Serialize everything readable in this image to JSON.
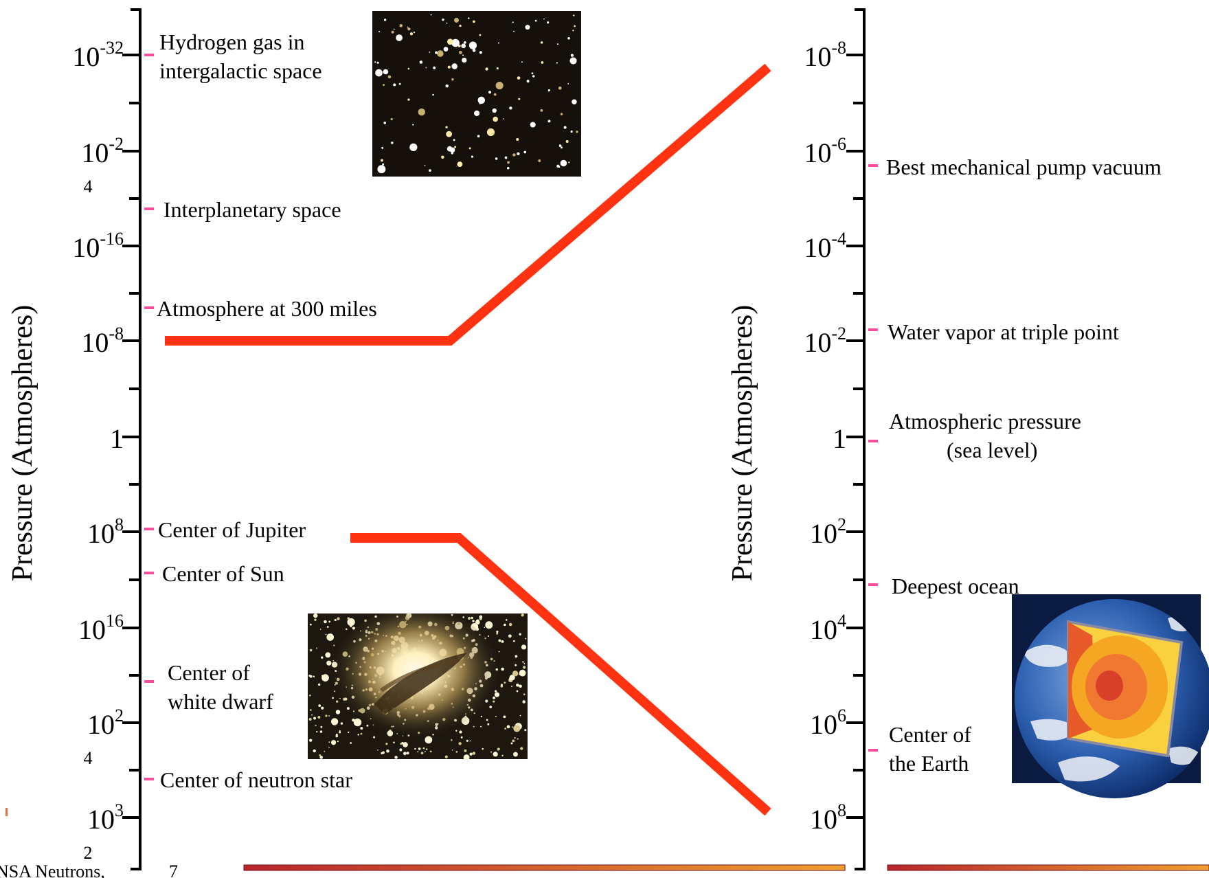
{
  "left_scale": {
    "axis_label": "Pressure (Atmospheres)",
    "ticks": [
      {
        "base": "10",
        "sup": "-32",
        "sub": ""
      },
      {
        "base": "10",
        "sup": "-2",
        "sub": "4"
      },
      {
        "base": "10",
        "sup": "-16",
        "sub": ""
      },
      {
        "base": "10",
        "sup": "-8",
        "sub": ""
      },
      {
        "base": "1",
        "sup": "",
        "sub": ""
      },
      {
        "base": "10",
        "sup": "8",
        "sub": ""
      },
      {
        "base": "10",
        "sup": "16",
        "sub": ""
      },
      {
        "base": "10",
        "sup": "2",
        "sub": "4"
      },
      {
        "base": "10",
        "sup": "3",
        "sub": "2"
      }
    ],
    "annotations": [
      {
        "lines": [
          "Hydrogen gas in",
          "intergalactic space"
        ]
      },
      {
        "lines": [
          "Interplanetary space"
        ]
      },
      {
        "lines": [
          "Atmosphere at 300 miles"
        ]
      },
      {
        "lines": [
          "Center of Jupiter"
        ]
      },
      {
        "lines": [
          "Center of Sun"
        ]
      },
      {
        "lines": [
          "Center of",
          "white dwarf"
        ]
      },
      {
        "lines": [
          "Center of neutron star"
        ]
      }
    ]
  },
  "right_scale": {
    "axis_label": "Pressure (Atmospheres)",
    "ticks": [
      {
        "base": "10",
        "sup": "-8",
        "sub": ""
      },
      {
        "base": "10",
        "sup": "-6",
        "sub": ""
      },
      {
        "base": "10",
        "sup": "-4",
        "sub": ""
      },
      {
        "base": "10",
        "sup": "-2",
        "sub": ""
      },
      {
        "base": "1",
        "sup": "",
        "sub": ""
      },
      {
        "base": "10",
        "sup": "2",
        "sub": ""
      },
      {
        "base": "10",
        "sup": "4",
        "sub": ""
      },
      {
        "base": "10",
        "sup": "6",
        "sub": ""
      },
      {
        "base": "10",
        "sup": "8",
        "sub": ""
      }
    ],
    "annotations": [
      {
        "lines": [
          "Best mechanical pump vacuum"
        ]
      },
      {
        "lines": [
          "Water vapor at triple point"
        ]
      },
      {
        "lines": [
          "Atmospheric pressure",
          "(sea level)"
        ]
      },
      {
        "lines": [
          "Deepest ocean"
        ]
      },
      {
        "lines": [
          "Center of",
          "the Earth"
        ]
      }
    ]
  },
  "footer": {
    "left_text": "NSA Neutrons,",
    "page_number": "7"
  },
  "colors": {
    "connector": "#ff3311",
    "tick_marker": "#ff4aa0",
    "axis": "#000000",
    "footer_bar_start": "#b8242c",
    "footer_bar_end": "#f0a030"
  },
  "images": [
    "starfield-photo",
    "galaxy-photo",
    "earth-cutaway-photo"
  ]
}
